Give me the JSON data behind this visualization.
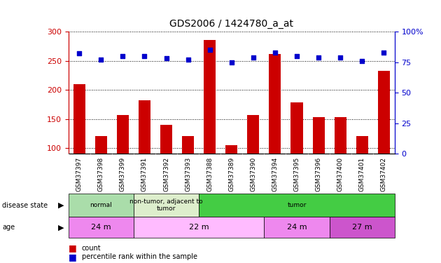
{
  "title": "GDS2006 / 1424780_a_at",
  "samples": [
    "GSM37397",
    "GSM37398",
    "GSM37399",
    "GSM37391",
    "GSM37392",
    "GSM37393",
    "GSM37388",
    "GSM37389",
    "GSM37390",
    "GSM37394",
    "GSM37395",
    "GSM37396",
    "GSM37400",
    "GSM37401",
    "GSM37402"
  ],
  "counts": [
    210,
    120,
    157,
    182,
    140,
    120,
    285,
    105,
    157,
    262,
    178,
    153,
    153,
    120,
    233
  ],
  "percentiles": [
    82,
    77,
    80,
    80,
    78,
    77,
    85,
    75,
    79,
    83,
    80,
    79,
    79,
    76,
    83
  ],
  "ylim_left": [
    90,
    300
  ],
  "ylim_right": [
    0,
    100
  ],
  "yticks_left": [
    100,
    150,
    200,
    250,
    300
  ],
  "yticks_right": [
    0,
    25,
    50,
    75,
    100
  ],
  "bar_color": "#cc0000",
  "dot_color": "#0000cc",
  "disease_state_groups": [
    {
      "label": "normal",
      "start": 0,
      "end": 3,
      "color": "#aaddaa"
    },
    {
      "label": "non-tumor, adjacent to\ntumor",
      "start": 3,
      "end": 6,
      "color": "#ddeecc"
    },
    {
      "label": "tumor",
      "start": 6,
      "end": 15,
      "color": "#44cc44"
    }
  ],
  "age_groups": [
    {
      "label": "24 m",
      "start": 0,
      "end": 3,
      "color": "#ee88ee"
    },
    {
      "label": "22 m",
      "start": 3,
      "end": 9,
      "color": "#ffbbff"
    },
    {
      "label": "24 m",
      "start": 9,
      "end": 12,
      "color": "#ee88ee"
    },
    {
      "label": "27 m",
      "start": 12,
      "end": 15,
      "color": "#cc55cc"
    }
  ],
  "ax_label_color_left": "#cc0000",
  "ax_label_color_right": "#0000cc",
  "background_color": "#ffffff",
  "tick_area_color": "#bbbbbb"
}
